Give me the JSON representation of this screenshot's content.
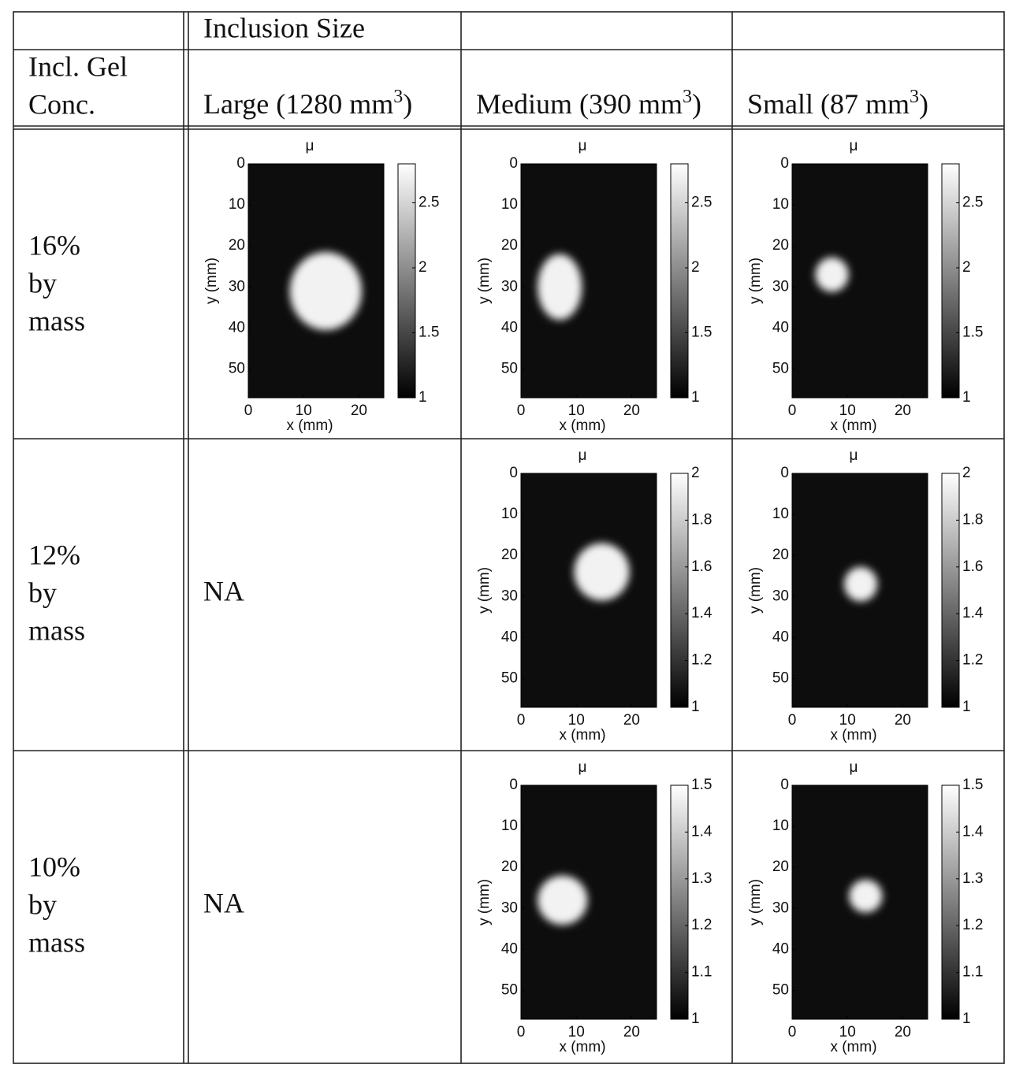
{
  "header": {
    "group_label": "Inclusion Size",
    "row_label": [
      "Incl. Gel",
      "Conc."
    ],
    "columns": [
      {
        "text": "Large (1280 mm",
        "sup": "3",
        "end": ")"
      },
      {
        "text": "Medium (390 mm",
        "sup": "3",
        "end": ")"
      },
      {
        "text": "Small (87 mm",
        "sup": "3",
        "end": ")"
      }
    ]
  },
  "rows": [
    {
      "label": [
        "16%",
        "by",
        "mass"
      ],
      "cells": [
        {
          "title": "μ",
          "xlabel": "x (mm)",
          "ylabel": "y (mm)",
          "xlim": [
            0,
            24.5
          ],
          "ylim": [
            0,
            57
          ],
          "xticks": [
            0,
            10,
            20
          ],
          "yticks": [
            0,
            10,
            20,
            30,
            40,
            50
          ],
          "clim": [
            1,
            2.8
          ],
          "cticks": [
            1,
            1.5,
            2,
            2.5
          ],
          "inclusion": {
            "cx": 14,
            "cy": 31,
            "rx": 6.5,
            "ry": 9.5
          }
        },
        {
          "title": "μ",
          "xlabel": "x (mm)",
          "ylabel": "y (mm)",
          "xlim": [
            0,
            24.5
          ],
          "ylim": [
            0,
            57
          ],
          "xticks": [
            0,
            10,
            20
          ],
          "yticks": [
            0,
            10,
            20,
            30,
            40,
            50
          ],
          "clim": [
            1,
            2.8
          ],
          "cticks": [
            1,
            1.5,
            2,
            2.5
          ],
          "inclusion": {
            "cx": 7,
            "cy": 30,
            "rx": 4,
            "ry": 8
          }
        },
        {
          "title": "μ",
          "xlabel": "x (mm)",
          "ylabel": "y (mm)",
          "xlim": [
            0,
            24.5
          ],
          "ylim": [
            0,
            57
          ],
          "xticks": [
            0,
            10,
            20
          ],
          "yticks": [
            0,
            10,
            20,
            30,
            40,
            50
          ],
          "clim": [
            1,
            2.8
          ],
          "cticks": [
            1,
            1.5,
            2,
            2.5
          ],
          "inclusion": {
            "cx": 7.2,
            "cy": 27,
            "rx": 3,
            "ry": 4.2
          }
        }
      ]
    },
    {
      "label": [
        "12%",
        "by",
        "mass"
      ],
      "cells": [
        "NA",
        {
          "title": "μ",
          "xlabel": "x (mm)",
          "ylabel": "y (mm)",
          "xlim": [
            0,
            24.5
          ],
          "ylim": [
            0,
            57
          ],
          "xticks": [
            0,
            10,
            20
          ],
          "yticks": [
            0,
            10,
            20,
            30,
            40,
            50
          ],
          "clim": [
            1,
            2
          ],
          "cticks": [
            1,
            1.2,
            1.4,
            1.6,
            1.8,
            2
          ],
          "inclusion": {
            "cx": 14.6,
            "cy": 24,
            "rx": 5,
            "ry": 7
          }
        },
        {
          "title": "μ",
          "xlabel": "x (mm)",
          "ylabel": "y (mm)",
          "xlim": [
            0,
            24.5
          ],
          "ylim": [
            0,
            57
          ],
          "xticks": [
            0,
            10,
            20
          ],
          "yticks": [
            0,
            10,
            20,
            30,
            40,
            50
          ],
          "clim": [
            1,
            2
          ],
          "cticks": [
            1,
            1.2,
            1.4,
            1.6,
            1.8,
            2
          ],
          "inclusion": {
            "cx": 12.4,
            "cy": 27,
            "rx": 3,
            "ry": 4.2
          }
        }
      ]
    },
    {
      "label": [
        "10%",
        "by",
        "mass"
      ],
      "cells": [
        "NA",
        {
          "title": "μ",
          "xlabel": "x (mm)",
          "ylabel": "y (mm)",
          "xlim": [
            0,
            24.5
          ],
          "ylim": [
            0,
            57
          ],
          "xticks": [
            0,
            10,
            20
          ],
          "yticks": [
            0,
            10,
            20,
            30,
            40,
            50
          ],
          "clim": [
            1,
            1.5
          ],
          "cticks": [
            1,
            1.1,
            1.2,
            1.3,
            1.4,
            1.5
          ],
          "inclusion": {
            "cx": 7.5,
            "cy": 28,
            "rx": 4.5,
            "ry": 6
          }
        },
        {
          "title": "μ",
          "xlabel": "x (mm)",
          "ylabel": "y (mm)",
          "xlim": [
            0,
            24.5
          ],
          "ylim": [
            0,
            57
          ],
          "xticks": [
            0,
            10,
            20
          ],
          "yticks": [
            0,
            10,
            20,
            30,
            40,
            50
          ],
          "clim": [
            1,
            1.5
          ],
          "cticks": [
            1,
            1.1,
            1.2,
            1.3,
            1.4,
            1.5
          ],
          "inclusion": {
            "cx": 13.3,
            "cy": 27,
            "rx": 3,
            "ry": 4
          }
        }
      ]
    }
  ]
}
